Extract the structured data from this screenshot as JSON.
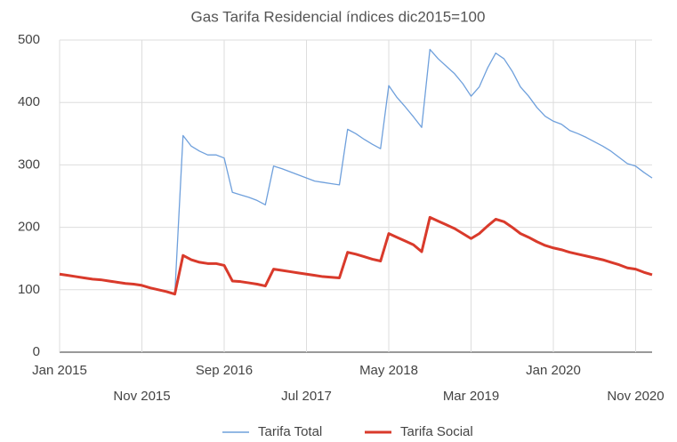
{
  "chart_data": {
    "type": "line",
    "title": "Gas Tarifa Residencial índices dic2015=100",
    "categories": [
      "Jan 2015",
      null,
      null,
      null,
      null,
      null,
      null,
      null,
      null,
      null,
      "Nov 2015",
      null,
      null,
      null,
      null,
      null,
      null,
      null,
      null,
      null,
      "Sep 2016",
      null,
      null,
      null,
      null,
      null,
      null,
      null,
      null,
      null,
      "Jul 2017",
      null,
      null,
      null,
      null,
      null,
      null,
      null,
      null,
      null,
      "May 2018",
      null,
      null,
      null,
      null,
      null,
      null,
      null,
      null,
      null,
      "Mar 2019",
      null,
      null,
      null,
      null,
      null,
      null,
      null,
      null,
      null,
      "Jan 2020",
      null,
      null,
      null,
      null,
      null,
      null,
      null,
      null,
      null,
      "Nov 2020",
      null,
      null
    ],
    "series": [
      {
        "name": "Tarifa Total",
        "color": "#6fa0dc",
        "values": [
          125,
          123,
          121,
          119,
          117,
          116,
          114,
          112,
          110,
          109,
          107,
          103,
          100,
          97,
          93,
          347,
          330,
          322,
          316,
          316,
          311,
          256,
          252,
          248,
          243,
          236,
          298,
          294,
          289,
          284,
          279,
          274,
          272,
          270,
          268,
          357,
          350,
          341,
          333,
          326,
          427,
          408,
          393,
          377,
          360,
          485,
          470,
          458,
          446,
          430,
          410,
          425,
          455,
          479,
          470,
          450,
          425,
          410,
          392,
          378,
          370,
          365,
          355,
          350,
          344,
          337,
          330,
          322,
          312,
          302,
          298,
          288,
          279
        ]
      },
      {
        "name": "Tarifa Social",
        "color": "#d93a2b",
        "values": [
          125,
          123,
          121,
          119,
          117,
          116,
          114,
          112,
          110,
          109,
          107,
          103,
          100,
          97,
          93,
          155,
          148,
          144,
          142,
          142,
          139,
          114,
          113,
          111,
          109,
          106,
          133,
          131,
          129,
          127,
          125,
          123,
          121,
          120,
          119,
          160,
          157,
          153,
          149,
          146,
          190,
          184,
          178,
          172,
          161,
          216,
          210,
          204,
          198,
          190,
          182,
          190,
          202,
          213,
          209,
          200,
          190,
          184,
          177,
          171,
          167,
          164,
          160,
          157,
          154,
          151,
          148,
          144,
          140,
          135,
          133,
          128,
          124
        ]
      }
    ],
    "ylim": [
      0,
      500
    ],
    "yticks": [
      0,
      100,
      200,
      300,
      400,
      500
    ],
    "grid": true,
    "legend": "bottom"
  }
}
